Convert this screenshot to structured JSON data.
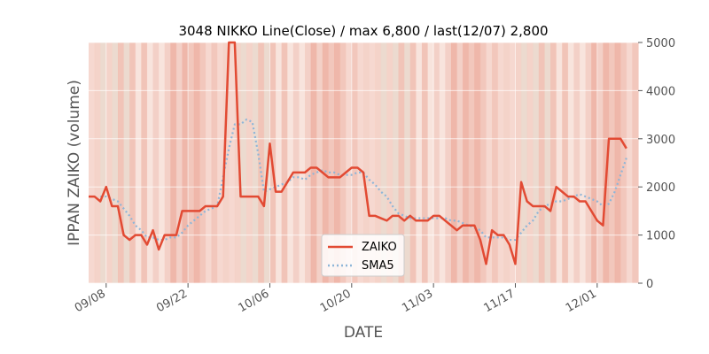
{
  "chart_data": {
    "type": "line",
    "title": "3048 NIKKO Line(Close) / max 6,800 / last(12/07) 2,800",
    "xlabel": "DATE",
    "ylabel": "IPPAN ZAIKO (volume)",
    "ylim": [
      0,
      5000
    ],
    "y_ticks": [
      0,
      1000,
      2000,
      3000,
      4000,
      5000
    ],
    "y_axis_side": "right",
    "x_ticks": [
      "09/08",
      "09/22",
      "10/06",
      "10/20",
      "11/03",
      "11/17",
      "12/01"
    ],
    "x_tick_dates": [
      "2020-09-08",
      "2020-09-22",
      "2020-10-06",
      "2020-10-20",
      "2020-11-03",
      "2020-11-17",
      "2020-12-01"
    ],
    "x_range": [
      "2020-09-05",
      "2020-12-08"
    ],
    "grid": true,
    "legend_position": "bottom-center",
    "background_shading": "daily vertical bands in shades of red/salmon behind the plot",
    "series": [
      {
        "name": "ZAIKO",
        "color": "#e24a33",
        "style": "solid",
        "points": [
          [
            "2020-09-05",
            1800
          ],
          [
            "2020-09-06",
            1800
          ],
          [
            "2020-09-07",
            1700
          ],
          [
            "2020-09-08",
            2000
          ],
          [
            "2020-09-09",
            1600
          ],
          [
            "2020-09-10",
            1600
          ],
          [
            "2020-09-11",
            1000
          ],
          [
            "2020-09-12",
            900
          ],
          [
            "2020-09-13",
            1000
          ],
          [
            "2020-09-14",
            1000
          ],
          [
            "2020-09-15",
            800
          ],
          [
            "2020-09-16",
            1100
          ],
          [
            "2020-09-17",
            700
          ],
          [
            "2020-09-18",
            1000
          ],
          [
            "2020-09-19",
            1000
          ],
          [
            "2020-09-20",
            1000
          ],
          [
            "2020-09-21",
            1500
          ],
          [
            "2020-09-22",
            1500
          ],
          [
            "2020-09-23",
            1500
          ],
          [
            "2020-09-24",
            1500
          ],
          [
            "2020-09-25",
            1600
          ],
          [
            "2020-09-26",
            1600
          ],
          [
            "2020-09-27",
            1600
          ],
          [
            "2020-09-28",
            1800
          ],
          [
            "2020-09-29",
            5000
          ],
          [
            "2020-09-30",
            5000
          ],
          [
            "2020-10-01",
            1800
          ],
          [
            "2020-10-02",
            1800
          ],
          [
            "2020-10-03",
            1800
          ],
          [
            "2020-10-04",
            1800
          ],
          [
            "2020-10-05",
            1600
          ],
          [
            "2020-10-06",
            2900
          ],
          [
            "2020-10-07",
            1900
          ],
          [
            "2020-10-08",
            1900
          ],
          [
            "2020-10-09",
            2100
          ],
          [
            "2020-10-10",
            2300
          ],
          [
            "2020-10-11",
            2300
          ],
          [
            "2020-10-12",
            2300
          ],
          [
            "2020-10-13",
            2400
          ],
          [
            "2020-10-14",
            2400
          ],
          [
            "2020-10-15",
            2300
          ],
          [
            "2020-10-16",
            2200
          ],
          [
            "2020-10-17",
            2200
          ],
          [
            "2020-10-18",
            2200
          ],
          [
            "2020-10-19",
            2300
          ],
          [
            "2020-10-20",
            2400
          ],
          [
            "2020-10-21",
            2400
          ],
          [
            "2020-10-22",
            2300
          ],
          [
            "2020-10-23",
            1400
          ],
          [
            "2020-10-24",
            1400
          ],
          [
            "2020-10-25",
            1350
          ],
          [
            "2020-10-26",
            1300
          ],
          [
            "2020-10-27",
            1400
          ],
          [
            "2020-10-28",
            1400
          ],
          [
            "2020-10-29",
            1300
          ],
          [
            "2020-10-30",
            1400
          ],
          [
            "2020-10-31",
            1300
          ],
          [
            "2020-11-01",
            1300
          ],
          [
            "2020-11-02",
            1300
          ],
          [
            "2020-11-03",
            1400
          ],
          [
            "2020-11-04",
            1400
          ],
          [
            "2020-11-05",
            1300
          ],
          [
            "2020-11-06",
            1200
          ],
          [
            "2020-11-07",
            1100
          ],
          [
            "2020-11-08",
            1200
          ],
          [
            "2020-11-09",
            1200
          ],
          [
            "2020-11-10",
            1200
          ],
          [
            "2020-11-11",
            900
          ],
          [
            "2020-11-12",
            400
          ],
          [
            "2020-11-13",
            1100
          ],
          [
            "2020-11-14",
            1000
          ],
          [
            "2020-11-15",
            1000
          ],
          [
            "2020-11-16",
            800
          ],
          [
            "2020-11-17",
            400
          ],
          [
            "2020-11-18",
            2100
          ],
          [
            "2020-11-19",
            1700
          ],
          [
            "2020-11-20",
            1600
          ],
          [
            "2020-11-21",
            1600
          ],
          [
            "2020-11-22",
            1600
          ],
          [
            "2020-11-23",
            1500
          ],
          [
            "2020-11-24",
            2000
          ],
          [
            "2020-11-25",
            1900
          ],
          [
            "2020-11-26",
            1800
          ],
          [
            "2020-11-27",
            1800
          ],
          [
            "2020-11-28",
            1700
          ],
          [
            "2020-11-29",
            1700
          ],
          [
            "2020-11-30",
            1500
          ],
          [
            "2020-12-01",
            1300
          ],
          [
            "2020-12-02",
            1200
          ],
          [
            "2020-12-03",
            3000
          ],
          [
            "2020-12-04",
            3000
          ],
          [
            "2020-12-05",
            3000
          ],
          [
            "2020-12-06",
            2800
          ]
        ]
      },
      {
        "name": "SMA5",
        "color": "#8eb6d8",
        "style": "dotted",
        "points": [
          [
            "2020-09-07",
            1800
          ],
          [
            "2020-09-08",
            1800
          ],
          [
            "2020-09-09",
            1750
          ],
          [
            "2020-09-10",
            1700
          ],
          [
            "2020-09-11",
            1550
          ],
          [
            "2020-09-12",
            1400
          ],
          [
            "2020-09-13",
            1200
          ],
          [
            "2020-09-14",
            1100
          ],
          [
            "2020-09-15",
            950
          ],
          [
            "2020-09-16",
            950
          ],
          [
            "2020-09-17",
            900
          ],
          [
            "2020-09-18",
            900
          ],
          [
            "2020-09-19",
            950
          ],
          [
            "2020-09-20",
            950
          ],
          [
            "2020-09-21",
            1050
          ],
          [
            "2020-09-22",
            1200
          ],
          [
            "2020-09-23",
            1300
          ],
          [
            "2020-09-24",
            1400
          ],
          [
            "2020-09-25",
            1500
          ],
          [
            "2020-09-26",
            1550
          ],
          [
            "2020-09-27",
            1600
          ],
          [
            "2020-09-28",
            2200
          ],
          [
            "2020-09-29",
            2800
          ],
          [
            "2020-09-30",
            3300
          ],
          [
            "2020-10-01",
            3300
          ],
          [
            "2020-10-02",
            3400
          ],
          [
            "2020-10-03",
            3350
          ],
          [
            "2020-10-04",
            2700
          ],
          [
            "2020-10-05",
            1900
          ],
          [
            "2020-10-06",
            1950
          ],
          [
            "2020-10-07",
            2000
          ],
          [
            "2020-10-08",
            2050
          ],
          [
            "2020-10-09",
            2100
          ],
          [
            "2020-10-10",
            2200
          ],
          [
            "2020-10-11",
            2200
          ],
          [
            "2020-10-12",
            2150
          ],
          [
            "2020-10-13",
            2250
          ],
          [
            "2020-10-14",
            2300
          ],
          [
            "2020-10-15",
            2350
          ],
          [
            "2020-10-16",
            2300
          ],
          [
            "2020-10-17",
            2300
          ],
          [
            "2020-10-18",
            2250
          ],
          [
            "2020-10-19",
            2250
          ],
          [
            "2020-10-20",
            2250
          ],
          [
            "2020-10-21",
            2300
          ],
          [
            "2020-10-22",
            2300
          ],
          [
            "2020-10-23",
            2150
          ],
          [
            "2020-10-24",
            2050
          ],
          [
            "2020-10-25",
            1900
          ],
          [
            "2020-10-26",
            1800
          ],
          [
            "2020-10-27",
            1600
          ],
          [
            "2020-10-28",
            1450
          ],
          [
            "2020-10-29",
            1400
          ],
          [
            "2020-10-30",
            1350
          ],
          [
            "2020-10-31",
            1350
          ],
          [
            "2020-11-01",
            1350
          ],
          [
            "2020-11-02",
            1350
          ],
          [
            "2020-11-03",
            1350
          ],
          [
            "2020-11-04",
            1350
          ],
          [
            "2020-11-05",
            1350
          ],
          [
            "2020-11-06",
            1300
          ],
          [
            "2020-11-07",
            1300
          ],
          [
            "2020-11-08",
            1250
          ],
          [
            "2020-11-09",
            1200
          ],
          [
            "2020-11-10",
            1150
          ],
          [
            "2020-11-11",
            1100
          ],
          [
            "2020-11-12",
            950
          ],
          [
            "2020-11-13",
            950
          ],
          [
            "2020-11-14",
            950
          ],
          [
            "2020-11-15",
            950
          ],
          [
            "2020-11-16",
            900
          ],
          [
            "2020-11-17",
            900
          ],
          [
            "2020-11-18",
            1050
          ],
          [
            "2020-11-19",
            1200
          ],
          [
            "2020-11-20",
            1300
          ],
          [
            "2020-11-21",
            1500
          ],
          [
            "2020-11-22",
            1600
          ],
          [
            "2020-11-23",
            1650
          ],
          [
            "2020-11-24",
            1700
          ],
          [
            "2020-11-25",
            1700
          ],
          [
            "2020-11-26",
            1750
          ],
          [
            "2020-11-27",
            1800
          ],
          [
            "2020-11-28",
            1850
          ],
          [
            "2020-11-29",
            1800
          ],
          [
            "2020-11-30",
            1750
          ],
          [
            "2020-12-01",
            1700
          ],
          [
            "2020-12-02",
            1600
          ],
          [
            "2020-12-03",
            1650
          ],
          [
            "2020-12-04",
            1900
          ],
          [
            "2020-12-05",
            2250
          ],
          [
            "2020-12-06",
            2600
          ]
        ]
      }
    ],
    "annotations": []
  }
}
